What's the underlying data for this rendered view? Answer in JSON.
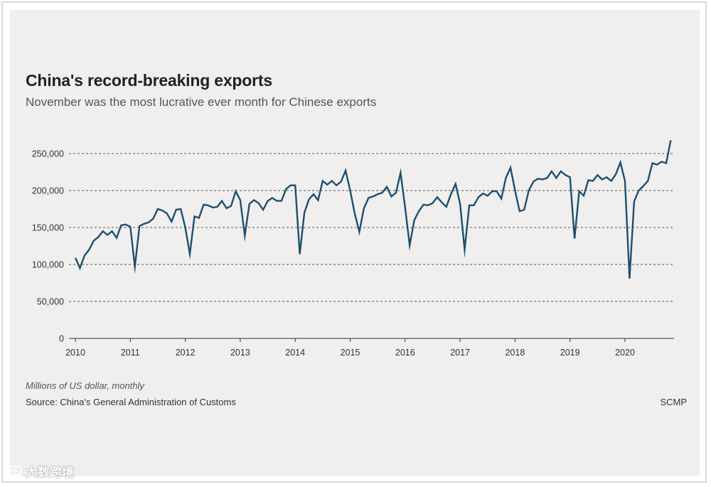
{
  "header": {
    "title": "China's record-breaking exports",
    "subtitle": "November was the most lucrative ever month for Chinese exports"
  },
  "footer": {
    "unit_note": "Millions of US dollar, monthly",
    "source": "Source: China's General Administration of Customs",
    "brand": "SCMP"
  },
  "watermark": {
    "text": "大数跨境",
    "icon": "speech-bubble-logo-icon"
  },
  "colors": {
    "line": "#1d4f6e",
    "grid": "#555555",
    "background": "#f0efee"
  },
  "chart_data": {
    "type": "line",
    "title": "China's record-breaking exports",
    "subtitle": "November was the most lucrative ever month for Chinese exports",
    "xlabel": "",
    "ylabel": "",
    "ylim": [
      0,
      270000
    ],
    "xlim": [
      "2010-01",
      "2020-11"
    ],
    "y_ticks": [
      0,
      50000,
      100000,
      150000,
      200000,
      250000
    ],
    "y_tick_labels": [
      "0",
      "50,000",
      "100,000",
      "150,000",
      "200,000",
      "250,000"
    ],
    "x_tick_labels": [
      "2010",
      "2011",
      "2012",
      "2013",
      "2014",
      "2015",
      "2016",
      "2017",
      "2018",
      "2019",
      "2020"
    ],
    "grid": "horizontal-dashed",
    "legend": "none",
    "series": [
      {
        "name": "",
        "start": "2010-01",
        "frequency": "monthly",
        "values": [
          109000,
          95000,
          112000,
          120000,
          132000,
          137000,
          145000,
          140000,
          145000,
          136000,
          153000,
          154000,
          151000,
          97000,
          152000,
          155000,
          157000,
          162000,
          175000,
          173000,
          169000,
          158000,
          174000,
          175000,
          150000,
          114000,
          165000,
          163000,
          181000,
          180000,
          177000,
          178000,
          186000,
          176000,
          179000,
          199000,
          187000,
          139000,
          182000,
          187000,
          183000,
          174000,
          186000,
          190000,
          186000,
          186000,
          202000,
          207000,
          207000,
          114000,
          170000,
          188000,
          195000,
          187000,
          213000,
          208000,
          213000,
          207000,
          212000,
          227000,
          200000,
          169000,
          144000,
          176000,
          190000,
          192000,
          195000,
          197000,
          205000,
          192000,
          197000,
          224000,
          177000,
          126000,
          160000,
          172000,
          181000,
          180000,
          183000,
          191000,
          184000,
          178000,
          195000,
          209000,
          182000,
          120000,
          180000,
          180000,
          191000,
          196000,
          193000,
          199000,
          199000,
          189000,
          217000,
          231000,
          200000,
          172000,
          174000,
          200000,
          212000,
          216000,
          215000,
          217000,
          226000,
          217000,
          226000,
          221000,
          218000,
          135000,
          199000,
          193000,
          214000,
          213000,
          221000,
          215000,
          218000,
          213000,
          222000,
          238000,
          213000,
          81000,
          185000,
          200000,
          206000,
          213000,
          237000,
          235000,
          239000,
          237000,
          268000
        ]
      }
    ]
  }
}
